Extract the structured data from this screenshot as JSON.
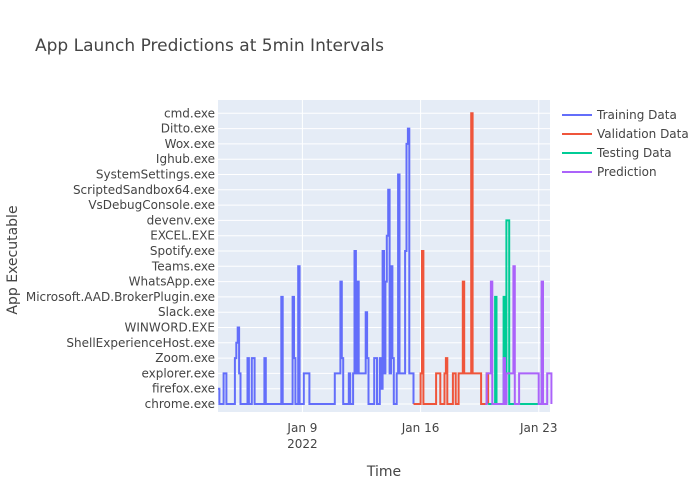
{
  "chart_data": {
    "type": "line",
    "title": "App Launch Predictions at 5min Intervals",
    "xlabel": "Time",
    "ylabel": "App Executable",
    "categories_y": [
      "chrome.exe",
      "firefox.exe",
      "explorer.exe",
      "Zoom.exe",
      "ShellExperienceHost.exe",
      "WINWORD.EXE",
      "Slack.exe",
      "Microsoft.AAD.BrokerPlugin.exe",
      "WhatsApp.exe",
      "Teams.exe",
      "Spotify.exe",
      "EXCEL.EXE",
      "devenv.exe",
      "VsDebugConsole.exe",
      "ScriptedSandbox64.exe",
      "SystemSettings.exe",
      "Ighub.exe",
      "Wox.exe",
      "Ditto.exe",
      "cmd.exe"
    ],
    "x_range": [
      "2022-01-04",
      "2022-01-23 16:00"
    ],
    "x_ticks": [
      {
        "date": "2022-01-09",
        "label": "Jan 9",
        "sublabel": "2022"
      },
      {
        "date": "2022-01-16",
        "label": "Jan 16",
        "sublabel": ""
      },
      {
        "date": "2022-01-23",
        "label": "Jan 23",
        "sublabel": ""
      }
    ],
    "legend_position": "top-right",
    "grid": true,
    "colors": {
      "plot_bg": "#E5ECF6",
      "grid": "#FFFFFF"
    },
    "series": [
      {
        "name": "Training Data",
        "color": "#636EFA",
        "points": [
          [
            "2022-01-04 00:00",
            1
          ],
          [
            "2022-01-04 02:00",
            0
          ],
          [
            "2022-01-04 06:00",
            0
          ],
          [
            "2022-01-04 08:00",
            2
          ],
          [
            "2022-01-04 10:00",
            2
          ],
          [
            "2022-01-04 12:00",
            0
          ],
          [
            "2022-01-04 20:00",
            0
          ],
          [
            "2022-01-05 00:00",
            3
          ],
          [
            "2022-01-05 02:00",
            4
          ],
          [
            "2022-01-05 04:00",
            5
          ],
          [
            "2022-01-05 06:00",
            2
          ],
          [
            "2022-01-05 08:00",
            0
          ],
          [
            "2022-01-05 16:00",
            0
          ],
          [
            "2022-01-05 18:00",
            3
          ],
          [
            "2022-01-05 20:00",
            0
          ],
          [
            "2022-01-06 00:00",
            3
          ],
          [
            "2022-01-06 04:00",
            0
          ],
          [
            "2022-01-06 16:00",
            0
          ],
          [
            "2022-01-06 18:00",
            3
          ],
          [
            "2022-01-06 20:00",
            0
          ],
          [
            "2022-01-07 16:00",
            0
          ],
          [
            "2022-01-07 18:00",
            7
          ],
          [
            "2022-01-07 20:00",
            0
          ],
          [
            "2022-01-08 08:00",
            0
          ],
          [
            "2022-01-08 10:00",
            7
          ],
          [
            "2022-01-08 12:00",
            3
          ],
          [
            "2022-01-08 14:00",
            0
          ],
          [
            "2022-01-08 18:00",
            9
          ],
          [
            "2022-01-08 20:00",
            0
          ],
          [
            "2022-01-09 00:00",
            0
          ],
          [
            "2022-01-09 02:00",
            2
          ],
          [
            "2022-01-09 08:00",
            2
          ],
          [
            "2022-01-09 10:00",
            0
          ],
          [
            "2022-01-10 20:00",
            0
          ],
          [
            "2022-01-10 22:00",
            2
          ],
          [
            "2022-01-11 04:00",
            2
          ],
          [
            "2022-01-11 06:00",
            8
          ],
          [
            "2022-01-11 08:00",
            3
          ],
          [
            "2022-01-11 10:00",
            0
          ],
          [
            "2022-01-11 18:00",
            2
          ],
          [
            "2022-01-11 20:00",
            0
          ],
          [
            "2022-01-12 00:00",
            2
          ],
          [
            "2022-01-12 02:00",
            10
          ],
          [
            "2022-01-12 04:00",
            2
          ],
          [
            "2022-01-12 06:00",
            8
          ],
          [
            "2022-01-12 08:00",
            2
          ],
          [
            "2022-01-12 16:00",
            2
          ],
          [
            "2022-01-12 18:00",
            6
          ],
          [
            "2022-01-12 20:00",
            3
          ],
          [
            "2022-01-12 22:00",
            0
          ],
          [
            "2022-01-13 06:00",
            3
          ],
          [
            "2022-01-13 10:00",
            0
          ],
          [
            "2022-01-13 14:00",
            3
          ],
          [
            "2022-01-13 16:00",
            1
          ],
          [
            "2022-01-13 18:00",
            10
          ],
          [
            "2022-01-13 20:00",
            2
          ],
          [
            "2022-01-13 22:00",
            8
          ],
          [
            "2022-01-14 00:00",
            11
          ],
          [
            "2022-01-14 02:00",
            14
          ],
          [
            "2022-01-14 04:00",
            2
          ],
          [
            "2022-01-14 06:00",
            9
          ],
          [
            "2022-01-14 08:00",
            3
          ],
          [
            "2022-01-14 10:00",
            0
          ],
          [
            "2022-01-14 14:00",
            2
          ],
          [
            "2022-01-14 16:00",
            15
          ],
          [
            "2022-01-14 18:00",
            2
          ],
          [
            "2022-01-15 00:00",
            2
          ],
          [
            "2022-01-15 02:00",
            10
          ],
          [
            "2022-01-15 04:00",
            17
          ],
          [
            "2022-01-15 06:00",
            18
          ],
          [
            "2022-01-15 08:00",
            2
          ],
          [
            "2022-01-15 12:00",
            2
          ],
          [
            "2022-01-15 14:00",
            0
          ]
        ]
      },
      {
        "name": "Validation Data",
        "color": "#EF553B",
        "points": [
          [
            "2022-01-15 14:00",
            0
          ],
          [
            "2022-01-15 22:00",
            0
          ],
          [
            "2022-01-16 00:00",
            2
          ],
          [
            "2022-01-16 02:00",
            10
          ],
          [
            "2022-01-16 04:00",
            0
          ],
          [
            "2022-01-16 20:00",
            0
          ],
          [
            "2022-01-16 22:00",
            2
          ],
          [
            "2022-01-17 02:00",
            2
          ],
          [
            "2022-01-17 04:00",
            0
          ],
          [
            "2022-01-17 10:00",
            2
          ],
          [
            "2022-01-17 12:00",
            3
          ],
          [
            "2022-01-17 14:00",
            0
          ],
          [
            "2022-01-17 20:00",
            0
          ],
          [
            "2022-01-17 22:00",
            2
          ],
          [
            "2022-01-18 02:00",
            0
          ],
          [
            "2022-01-18 06:00",
            2
          ],
          [
            "2022-01-18 10:00",
            2
          ],
          [
            "2022-01-18 12:00",
            8
          ],
          [
            "2022-01-18 14:00",
            2
          ],
          [
            "2022-01-18 22:00",
            2
          ],
          [
            "2022-01-19 00:00",
            19
          ],
          [
            "2022-01-19 02:00",
            2
          ],
          [
            "2022-01-19 12:00",
            2
          ],
          [
            "2022-01-19 14:00",
            0
          ],
          [
            "2022-01-19 20:00",
            0
          ],
          [
            "2022-01-19 22:00",
            2
          ],
          [
            "2022-01-20 00:00",
            0
          ]
        ]
      },
      {
        "name": "Testing Data",
        "color": "#00CC96",
        "points": [
          [
            "2022-01-20 00:00",
            0
          ],
          [
            "2022-01-20 08:00",
            0
          ],
          [
            "2022-01-20 10:00",
            7
          ],
          [
            "2022-01-20 12:00",
            0
          ],
          [
            "2022-01-20 20:00",
            0
          ],
          [
            "2022-01-20 22:00",
            7
          ],
          [
            "2022-01-21 00:00",
            0
          ],
          [
            "2022-01-21 02:00",
            12
          ],
          [
            "2022-01-21 04:00",
            12
          ],
          [
            "2022-01-21 06:00",
            0
          ],
          [
            "2022-01-22 16:00",
            0
          ],
          [
            "2022-01-23 02:00",
            0
          ],
          [
            "2022-01-23 04:00",
            7
          ],
          [
            "2022-01-23 06:00",
            0
          ]
        ]
      },
      {
        "name": "Prediction",
        "color": "#AB63FA",
        "points": [
          [
            "2022-01-19 20:00",
            0
          ],
          [
            "2022-01-19 22:00",
            2
          ],
          [
            "2022-01-20 02:00",
            2
          ],
          [
            "2022-01-20 04:00",
            8
          ],
          [
            "2022-01-20 06:00",
            0
          ],
          [
            "2022-01-20 20:00",
            0
          ],
          [
            "2022-01-20 22:00",
            3
          ],
          [
            "2022-01-21 00:00",
            0
          ],
          [
            "2022-01-21 02:00",
            2
          ],
          [
            "2022-01-21 10:00",
            2
          ],
          [
            "2022-01-21 12:00",
            9
          ],
          [
            "2022-01-21 14:00",
            0
          ],
          [
            "2022-01-21 18:00",
            0
          ],
          [
            "2022-01-21 20:00",
            2
          ],
          [
            "2022-01-22 22:00",
            2
          ],
          [
            "2022-01-23 00:00",
            0
          ],
          [
            "2022-01-23 02:00",
            0
          ],
          [
            "2022-01-23 04:00",
            8
          ],
          [
            "2022-01-23 06:00",
            0
          ],
          [
            "2022-01-23 10:00",
            0
          ],
          [
            "2022-01-23 12:00",
            2
          ],
          [
            "2022-01-23 16:00",
            2
          ],
          [
            "2022-01-23 18:00",
            0
          ]
        ]
      }
    ]
  }
}
